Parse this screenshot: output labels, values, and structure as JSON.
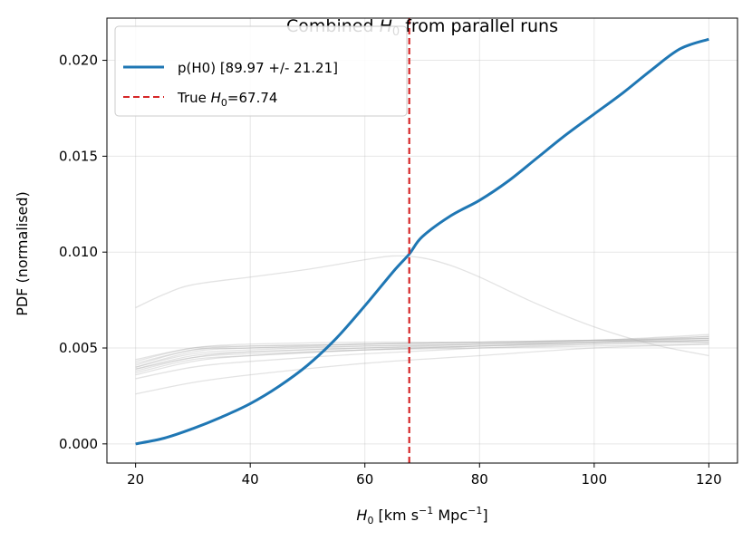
{
  "chart_data": {
    "type": "line",
    "title_parts": [
      "Combined ",
      "H",
      "0",
      " from parallel runs"
    ],
    "xlabel_parts": [
      "H",
      "0",
      " [km s",
      "−1",
      " Mpc",
      "−1",
      "]"
    ],
    "ylabel": "PDF (normalised)",
    "xlim": [
      15,
      125
    ],
    "ylim": [
      -0.001,
      0.0222
    ],
    "xticks": [
      20,
      40,
      60,
      80,
      100,
      120
    ],
    "yticks": [
      0.0,
      0.005,
      0.01,
      0.015,
      0.02
    ],
    "ytick_labels": [
      "0.000",
      "0.005",
      "0.010",
      "0.015",
      "0.020"
    ],
    "grid": true,
    "legend_position": "top-left",
    "colors": {
      "main": "#1f77b4",
      "truth": "#d62728",
      "runs": "#b0b0b0"
    },
    "series": [
      {
        "name": "p(H0) [89.97 +/- 21.21]",
        "x": [
          20,
          25,
          30,
          35,
          40,
          45,
          50,
          55,
          60,
          65,
          67.74,
          70,
          75,
          80,
          85,
          90,
          95,
          100,
          105,
          110,
          115,
          120
        ],
        "values": [
          0.0,
          0.0003,
          0.0008,
          0.0014,
          0.0021,
          0.003,
          0.0041,
          0.0055,
          0.0072,
          0.009,
          0.0099,
          0.0108,
          0.0119,
          0.0127,
          0.0137,
          0.0149,
          0.0161,
          0.0172,
          0.0183,
          0.0195,
          0.0206,
          0.0211
        ]
      },
      {
        "name": "run-high",
        "x": [
          20,
          25,
          30,
          40,
          50,
          60,
          65,
          70,
          75,
          80,
          90,
          100,
          110,
          120
        ],
        "values": [
          0.0071,
          0.0078,
          0.0083,
          0.0087,
          0.0091,
          0.0096,
          0.0098,
          0.0097,
          0.0093,
          0.0087,
          0.0073,
          0.0061,
          0.0052,
          0.0046
        ]
      },
      {
        "name": "run-1",
        "x": [
          20,
          30,
          40,
          60,
          80,
          100,
          120
        ],
        "values": [
          0.0026,
          0.0032,
          0.0036,
          0.0042,
          0.0046,
          0.005,
          0.0052
        ]
      },
      {
        "name": "run-2",
        "x": [
          20,
          30,
          40,
          60,
          80,
          100,
          120
        ],
        "values": [
          0.0034,
          0.004,
          0.0043,
          0.0047,
          0.005,
          0.0052,
          0.0054
        ]
      },
      {
        "name": "run-3",
        "x": [
          20,
          30,
          40,
          60,
          80,
          100,
          120
        ],
        "values": [
          0.0037,
          0.0044,
          0.0046,
          0.0049,
          0.0051,
          0.0053,
          0.0055
        ]
      },
      {
        "name": "run-4",
        "x": [
          20,
          30,
          40,
          60,
          80,
          100,
          120
        ],
        "values": [
          0.0038,
          0.0045,
          0.0048,
          0.005,
          0.0052,
          0.0053,
          0.0054
        ]
      },
      {
        "name": "run-5",
        "x": [
          20,
          30,
          40,
          60,
          80,
          100,
          120
        ],
        "values": [
          0.0039,
          0.0046,
          0.0048,
          0.005,
          0.0051,
          0.0052,
          0.0053
        ]
      },
      {
        "name": "run-6",
        "x": [
          20,
          30,
          40,
          60,
          80,
          100,
          120
        ],
        "values": [
          0.004,
          0.0047,
          0.0049,
          0.0051,
          0.0052,
          0.0053,
          0.0054
        ]
      },
      {
        "name": "run-7",
        "x": [
          20,
          30,
          40,
          60,
          80,
          100,
          120
        ],
        "values": [
          0.004,
          0.0048,
          0.005,
          0.0051,
          0.0052,
          0.0054,
          0.0056
        ]
      },
      {
        "name": "run-8",
        "x": [
          20,
          30,
          40,
          60,
          80,
          100,
          120
        ],
        "values": [
          0.0041,
          0.0049,
          0.005,
          0.0052,
          0.0053,
          0.0054,
          0.0055
        ]
      },
      {
        "name": "run-9",
        "x": [
          20,
          30,
          40,
          60,
          80,
          100,
          120
        ],
        "values": [
          0.0042,
          0.0049,
          0.0051,
          0.0052,
          0.0053,
          0.0054,
          0.0057
        ]
      },
      {
        "name": "run-10",
        "x": [
          20,
          30,
          40,
          60,
          80,
          100,
          120
        ],
        "values": [
          0.0043,
          0.005,
          0.0051,
          0.0052,
          0.0053,
          0.0054,
          0.0055
        ]
      },
      {
        "name": "run-11",
        "x": [
          20,
          30,
          40,
          60,
          80,
          100,
          120
        ],
        "values": [
          0.0044,
          0.005,
          0.0052,
          0.0053,
          0.0053,
          0.0054,
          0.0053
        ]
      },
      {
        "name": "run-12",
        "x": [
          20,
          30,
          40,
          60,
          80,
          100,
          120
        ],
        "values": [
          0.0039,
          0.0045,
          0.0047,
          0.0049,
          0.005,
          0.0051,
          0.0052
        ]
      },
      {
        "name": "run-13",
        "x": [
          20,
          30,
          40,
          60,
          80,
          100,
          120
        ],
        "values": [
          0.0036,
          0.0043,
          0.0046,
          0.0049,
          0.0051,
          0.0053,
          0.0056
        ]
      }
    ],
    "legend": [
      {
        "label": "p(H0) [89.97 +/- 21.21]"
      },
      {
        "label_parts": [
          "True ",
          "H",
          "0",
          "=67.74"
        ]
      }
    ],
    "annotations": [
      {
        "type": "vline",
        "x": 67.74
      }
    ]
  }
}
